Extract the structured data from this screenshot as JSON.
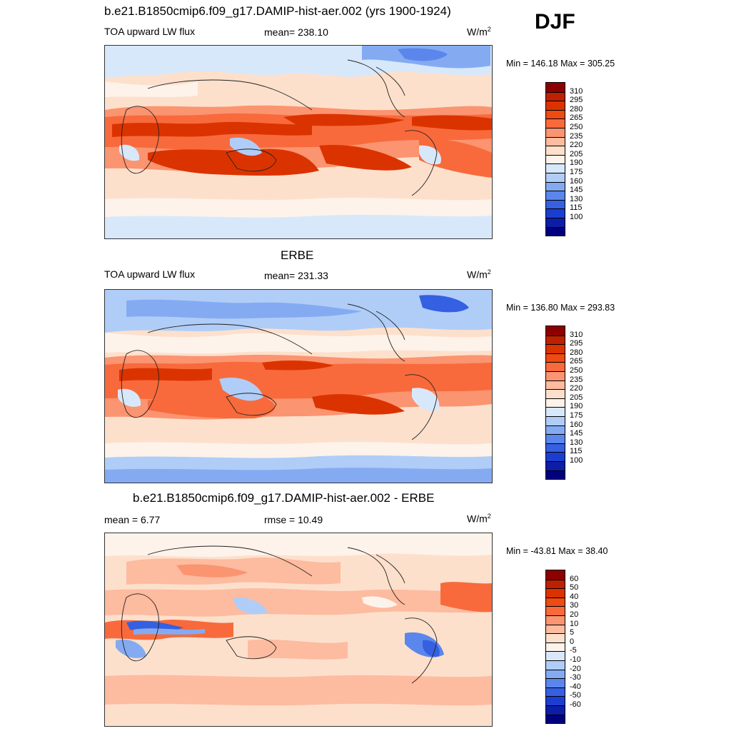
{
  "season": "DJF",
  "panel1": {
    "title": "b.e21.B1850cmip6.f09_g17.DAMIP-hist-aer.002 (yrs 1900-1924)",
    "left": "TOA upward LW flux",
    "center": "mean= 238.10",
    "units": "W/m",
    "units_sup": "2",
    "minmax": "Min = 146.18 Max = 305.25"
  },
  "panel2": {
    "title": "ERBE",
    "left": "TOA upward LW flux",
    "center": "mean= 231.33",
    "units": "W/m",
    "units_sup": "2",
    "minmax": "Min = 136.80 Max = 293.83"
  },
  "panel3": {
    "title": "b.e21.B1850cmip6.f09_g17.DAMIP-hist-aer.002 - ERBE",
    "left": "mean =   6.77",
    "center": "rmse =  10.49",
    "units": "W/m",
    "units_sup": "2",
    "minmax": "Min = -43.81 Max =  38.40"
  },
  "colorbar_abs": {
    "labels": [
      "310",
      "295",
      "280",
      "265",
      "250",
      "235",
      "220",
      "205",
      "190",
      "175",
      "160",
      "145",
      "130",
      "115",
      "100"
    ],
    "colors": [
      "#8c0000",
      "#bf2000",
      "#db3300",
      "#ee4a12",
      "#f86a3c",
      "#fb9470",
      "#fdbba0",
      "#fde0cc",
      "#fdf3ea",
      "#d8e8fb",
      "#b0cdf8",
      "#84abf2",
      "#5b86ec",
      "#3560e2",
      "#1c3ed0",
      "#0c1ea8",
      "#000080"
    ]
  },
  "colorbar_diff": {
    "labels": [
      "60",
      "50",
      "40",
      "30",
      "20",
      "10",
      "5",
      "0",
      "-5",
      "-10",
      "-20",
      "-30",
      "-40",
      "-50",
      "-60"
    ],
    "colors": [
      "#8c0000",
      "#bf2000",
      "#db3300",
      "#ee4a12",
      "#f86a3c",
      "#fb9470",
      "#fdbba0",
      "#fde0cc",
      "#fdf3ea",
      "#d8e8fb",
      "#b0cdf8",
      "#84abf2",
      "#5b86ec",
      "#3560e2",
      "#1c3ed0",
      "#0c1ea8",
      "#000080"
    ]
  }
}
